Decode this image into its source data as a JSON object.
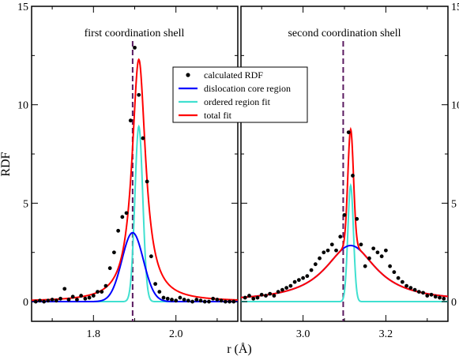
{
  "chart_data": {
    "type": "line",
    "ylabel": "RDF",
    "xlabel": "r (Å)",
    "ylim": [
      -1,
      15
    ],
    "yticks": [
      "0",
      "5",
      "10",
      "15"
    ],
    "yticks_values": [
      0,
      5,
      10,
      15
    ],
    "grid": false,
    "legend": {
      "placement": "top-center",
      "entries": [
        {
          "label": "calculated RDF",
          "marker": "dot",
          "color": "#000000"
        },
        {
          "label": "dislocation core region",
          "marker": "line",
          "color": "#0000ff"
        },
        {
          "label": "ordered region fit",
          "marker": "line",
          "color": "#40e0d0"
        },
        {
          "label": "total fit",
          "marker": "line",
          "color": "#ff0000"
        }
      ]
    },
    "panels": [
      {
        "title": "first coordination shell",
        "xlim": [
          1.65,
          2.15
        ],
        "xticks": [
          "1.8",
          "2.0"
        ],
        "xticks_values": [
          1.8,
          2.0
        ],
        "vline": {
          "x": 1.895,
          "color": "#5a1a60"
        },
        "series": {
          "calculated": {
            "x": [
              1.66,
              1.67,
              1.68,
              1.69,
              1.7,
              1.71,
              1.72,
              1.73,
              1.74,
              1.75,
              1.76,
              1.77,
              1.78,
              1.79,
              1.8,
              1.81,
              1.82,
              1.83,
              1.84,
              1.85,
              1.86,
              1.87,
              1.88,
              1.89,
              1.9,
              1.91,
              1.92,
              1.93,
              1.94,
              1.95,
              1.96,
              1.97,
              1.98,
              1.99,
              2.0,
              2.01,
              2.02,
              2.03,
              2.04,
              2.05,
              2.06,
              2.07,
              2.08,
              2.09,
              2.1,
              2.11,
              2.12,
              2.13,
              2.14
            ],
            "y": [
              0.0,
              0.05,
              0.0,
              0.05,
              0.1,
              0.05,
              0.15,
              0.65,
              0.1,
              0.25,
              0.1,
              0.3,
              0.15,
              0.2,
              0.3,
              0.5,
              0.5,
              0.8,
              1.7,
              2.5,
              3.6,
              4.3,
              4.5,
              9.2,
              12.9,
              10.5,
              8.3,
              6.1,
              2.3,
              0.9,
              0.5,
              0.2,
              0.15,
              0.1,
              0.05,
              0.2,
              0.1,
              0.05,
              0.0,
              0.1,
              0.05,
              0.0,
              0.0,
              0.15,
              0.1,
              0.05,
              0.0,
              0.0,
              0.0
            ]
          },
          "dislocation_core": {
            "model": "gaussian",
            "amplitude": 3.5,
            "center": 1.895,
            "sigma": 0.026
          },
          "ordered_region": {
            "model": "gaussian",
            "amplitude": 8.9,
            "center": 1.91,
            "sigma": 0.0095
          },
          "total_fit": {
            "model": "lorentzian",
            "amplitude": 12.3,
            "center": 1.91,
            "gamma": 0.02
          }
        }
      },
      {
        "title": "second coordination shell",
        "xlim": [
          2.85,
          3.35
        ],
        "xticks": [
          "3.0",
          "3.2"
        ],
        "xticks_values": [
          3.0,
          3.2
        ],
        "vline": {
          "x": 3.097,
          "color": "#5a1a60"
        },
        "series": {
          "calculated": {
            "x": [
              2.86,
              2.87,
              2.88,
              2.89,
              2.9,
              2.91,
              2.92,
              2.93,
              2.94,
              2.95,
              2.96,
              2.97,
              2.98,
              2.99,
              3.0,
              3.01,
              3.02,
              3.03,
              3.04,
              3.05,
              3.06,
              3.07,
              3.08,
              3.09,
              3.1,
              3.11,
              3.12,
              3.13,
              3.14,
              3.15,
              3.16,
              3.17,
              3.18,
              3.19,
              3.2,
              3.21,
              3.22,
              3.23,
              3.24,
              3.25,
              3.26,
              3.27,
              3.28,
              3.29,
              3.3,
              3.31,
              3.32,
              3.33,
              3.34
            ],
            "y": [
              0.2,
              0.3,
              0.15,
              0.2,
              0.35,
              0.3,
              0.4,
              0.3,
              0.5,
              0.6,
              0.7,
              0.8,
              1.0,
              1.1,
              1.2,
              1.3,
              1.6,
              1.9,
              2.2,
              2.5,
              2.6,
              2.9,
              2.6,
              3.3,
              4.4,
              8.6,
              6.4,
              4.2,
              2.9,
              1.8,
              2.2,
              2.7,
              2.5,
              2.3,
              2.6,
              1.8,
              1.5,
              1.2,
              1.0,
              0.8,
              0.7,
              0.6,
              0.5,
              0.45,
              0.3,
              0.35,
              0.25,
              0.2,
              0.15
            ]
          },
          "dislocation_core": {
            "model": "lorentzian",
            "amplitude": 2.85,
            "center": 3.115,
            "gamma": 0.075
          },
          "ordered_region": {
            "model": "gaussian",
            "amplitude": 5.9,
            "center": 3.115,
            "sigma": 0.0068
          },
          "total_fit": {
            "model": "composite",
            "components": [
              "dislocation_core",
              "ordered_region"
            ]
          }
        }
      }
    ]
  }
}
